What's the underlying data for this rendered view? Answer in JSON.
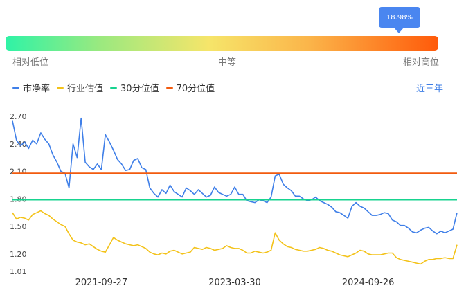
{
  "gauge": {
    "percentile_label": "18.98%",
    "percentile": 18.98,
    "scale_labels": [
      "相对低位",
      "中等",
      "相对高位"
    ]
  },
  "legend": {
    "items": [
      {
        "label": "市净率",
        "color": "#3f7fe8"
      },
      {
        "label": "行业估值",
        "color": "#f3c219"
      },
      {
        "label": "30分位值",
        "color": "#17d38f"
      },
      {
        "label": "70分位值",
        "color": "#f25b0f"
      }
    ]
  },
  "period_link": "近三年",
  "chart_data": {
    "type": "line",
    "ylim": [
      1.01,
      2.7
    ],
    "y_ticks": [
      "2.70",
      "2.40",
      "2.10",
      "1.80",
      "1.50",
      "1.20",
      "1.01"
    ],
    "x_tick_labels": [
      "2021-09-27",
      "2023-03-30",
      "2024-09-26"
    ],
    "x_tick_positions": [
      0.2,
      0.5,
      0.8
    ],
    "series": [
      {
        "name": "市净率",
        "color": "#3f7fe8",
        "values": [
          2.65,
          2.44,
          2.38,
          2.42,
          2.35,
          2.44,
          2.4,
          2.52,
          2.45,
          2.4,
          2.28,
          2.2,
          2.1,
          2.08,
          1.92,
          2.4,
          2.25,
          2.68,
          2.2,
          2.15,
          2.12,
          2.18,
          2.12,
          2.5,
          2.42,
          2.33,
          2.23,
          2.18,
          2.11,
          2.12,
          2.22,
          2.24,
          2.14,
          2.12,
          1.92,
          1.86,
          1.82,
          1.9,
          1.86,
          1.95,
          1.88,
          1.85,
          1.82,
          1.92,
          1.89,
          1.85,
          1.9,
          1.86,
          1.82,
          1.84,
          1.93,
          1.87,
          1.85,
          1.83,
          1.85,
          1.93,
          1.85,
          1.85,
          1.78,
          1.77,
          1.76,
          1.79,
          1.78,
          1.76,
          1.82,
          2.05,
          2.07,
          1.96,
          1.92,
          1.89,
          1.83,
          1.83,
          1.8,
          1.78,
          1.79,
          1.82,
          1.78,
          1.76,
          1.74,
          1.71,
          1.66,
          1.65,
          1.62,
          1.59,
          1.72,
          1.76,
          1.72,
          1.7,
          1.66,
          1.62,
          1.62,
          1.63,
          1.65,
          1.64,
          1.57,
          1.55,
          1.51,
          1.51,
          1.48,
          1.44,
          1.43,
          1.46,
          1.48,
          1.49,
          1.45,
          1.42,
          1.45,
          1.43,
          1.45,
          1.47,
          1.65
        ]
      },
      {
        "name": "行业估值",
        "color": "#f3c219",
        "values": [
          1.65,
          1.58,
          1.6,
          1.59,
          1.57,
          1.63,
          1.65,
          1.67,
          1.64,
          1.62,
          1.58,
          1.55,
          1.52,
          1.5,
          1.42,
          1.35,
          1.33,
          1.32,
          1.3,
          1.31,
          1.28,
          1.25,
          1.23,
          1.22,
          1.3,
          1.38,
          1.35,
          1.33,
          1.31,
          1.3,
          1.29,
          1.3,
          1.28,
          1.26,
          1.22,
          1.2,
          1.19,
          1.21,
          1.2,
          1.23,
          1.24,
          1.22,
          1.2,
          1.21,
          1.22,
          1.27,
          1.26,
          1.25,
          1.27,
          1.26,
          1.24,
          1.25,
          1.26,
          1.29,
          1.27,
          1.26,
          1.26,
          1.24,
          1.21,
          1.21,
          1.23,
          1.22,
          1.21,
          1.22,
          1.24,
          1.43,
          1.35,
          1.31,
          1.28,
          1.27,
          1.25,
          1.24,
          1.23,
          1.23,
          1.24,
          1.25,
          1.27,
          1.26,
          1.24,
          1.23,
          1.21,
          1.19,
          1.18,
          1.17,
          1.19,
          1.21,
          1.24,
          1.23,
          1.2,
          1.19,
          1.19,
          1.19,
          1.2,
          1.21,
          1.21,
          1.16,
          1.14,
          1.13,
          1.12,
          1.11,
          1.1,
          1.09,
          1.12,
          1.14,
          1.14,
          1.15,
          1.15,
          1.16,
          1.15,
          1.15,
          1.3
        ]
      },
      {
        "name": "30分位值",
        "color": "#17d38f",
        "values": [
          1.79,
          1.79
        ]
      },
      {
        "name": "70分位值",
        "color": "#f25b0f",
        "values": [
          2.08,
          2.08
        ]
      }
    ]
  }
}
